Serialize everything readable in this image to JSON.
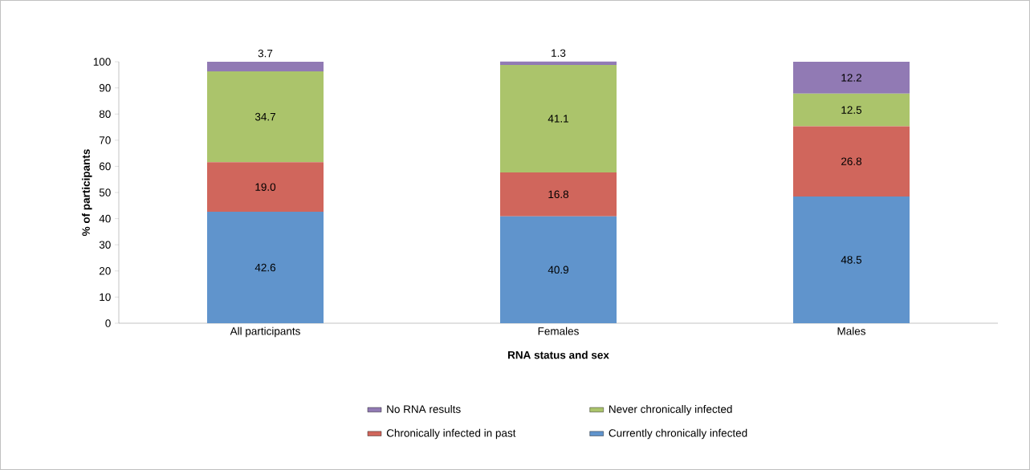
{
  "chart_data": {
    "type": "bar",
    "stacked": true,
    "xlabel": "RNA status and sex",
    "ylabel": "% of participants",
    "categories": [
      "All participants",
      "Females",
      "Males"
    ],
    "series": [
      {
        "name": "Currently chronically infected",
        "color": "#6094cc",
        "values": [
          42.6,
          40.9,
          48.5
        ],
        "value_labels": [
          "42.6",
          "40.9",
          "48.5"
        ]
      },
      {
        "name": "Chronically infected in past",
        "color": "#d0665c",
        "values": [
          19.0,
          16.8,
          26.8
        ],
        "value_labels": [
          "19.0",
          "16.8",
          "26.8"
        ]
      },
      {
        "name": "Never chronically infected",
        "color": "#abc46b",
        "values": [
          34.7,
          41.1,
          12.5
        ],
        "value_labels": [
          "34.7",
          "41.1",
          "12.5"
        ]
      },
      {
        "name": "No RNA results",
        "color": "#917ab4",
        "values": [
          3.7,
          1.3,
          12.2
        ],
        "value_labels": [
          "3.7",
          "1.3",
          "12.2"
        ]
      }
    ],
    "ylim": [
      0,
      100
    ],
    "yticks": [
      0,
      10,
      20,
      30,
      40,
      50,
      60,
      70,
      80,
      90,
      100
    ],
    "legend": "bottom"
  }
}
